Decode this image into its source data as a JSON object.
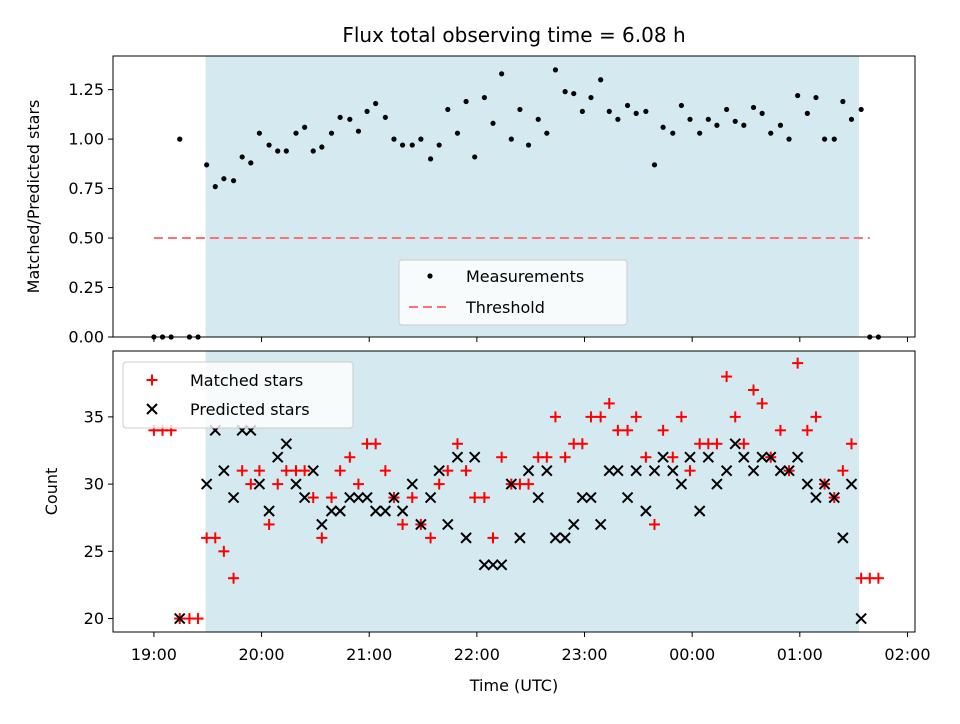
{
  "chart_data": [
    {
      "type": "scatter",
      "title": "Flux total observing time = 6.08 h",
      "xlabel": "",
      "ylabel": "Matched/Predicted stars",
      "ylim": [
        0,
        1.42
      ],
      "yticks": [
        "0.00",
        "0.25",
        "0.50",
        "0.75",
        "1.00",
        "1.25"
      ],
      "x_range_hours": [
        18.62,
        26.07
      ],
      "observing_window_hours": [
        19.48,
        25.55
      ],
      "threshold": {
        "value": 0.5,
        "x_start": 19.0,
        "x_end": 25.65,
        "color": "#ff7070"
      },
      "window_color": "#d4eaf0",
      "legend": {
        "position": "lower-center",
        "items": [
          "Measurements",
          "Threshold"
        ]
      },
      "series": [
        {
          "name": "Measurements",
          "marker": "dot",
          "color": "#000000",
          "points": [
            [
              19.0,
              0.0
            ],
            [
              19.08,
              0.0
            ],
            [
              19.16,
              0.0
            ],
            [
              19.24,
              1.0
            ],
            [
              19.33,
              0.0
            ],
            [
              19.41,
              0.0
            ],
            [
              19.49,
              0.87
            ],
            [
              19.57,
              0.76
            ],
            [
              19.65,
              0.8
            ],
            [
              19.74,
              0.79
            ],
            [
              19.82,
              0.91
            ],
            [
              19.9,
              0.88
            ],
            [
              19.98,
              1.03
            ],
            [
              20.07,
              0.97
            ],
            [
              20.15,
              0.94
            ],
            [
              20.23,
              0.94
            ],
            [
              20.32,
              1.03
            ],
            [
              20.4,
              1.06
            ],
            [
              20.48,
              0.94
            ],
            [
              20.56,
              0.96
            ],
            [
              20.65,
              1.03
            ],
            [
              20.73,
              1.11
            ],
            [
              20.82,
              1.1
            ],
            [
              20.9,
              1.04
            ],
            [
              20.98,
              1.14
            ],
            [
              21.06,
              1.18
            ],
            [
              21.15,
              1.11
            ],
            [
              21.23,
              1.0
            ],
            [
              21.31,
              0.97
            ],
            [
              21.4,
              0.97
            ],
            [
              21.48,
              1.0
            ],
            [
              21.57,
              0.9
            ],
            [
              21.65,
              0.97
            ],
            [
              21.73,
              1.15
            ],
            [
              21.82,
              1.03
            ],
            [
              21.9,
              1.19
            ],
            [
              21.98,
              0.91
            ],
            [
              22.07,
              1.21
            ],
            [
              22.15,
              1.08
            ],
            [
              22.23,
              1.33
            ],
            [
              22.32,
              1.0
            ],
            [
              22.4,
              1.15
            ],
            [
              22.48,
              0.97
            ],
            [
              22.57,
              1.1
            ],
            [
              22.65,
              1.03
            ],
            [
              22.73,
              1.35
            ],
            [
              22.82,
              1.24
            ],
            [
              22.9,
              1.23
            ],
            [
              22.98,
              1.14
            ],
            [
              23.06,
              1.21
            ],
            [
              23.15,
              1.3
            ],
            [
              23.23,
              1.14
            ],
            [
              23.31,
              1.1
            ],
            [
              23.4,
              1.17
            ],
            [
              23.48,
              1.13
            ],
            [
              23.57,
              1.14
            ],
            [
              23.65,
              0.87
            ],
            [
              23.73,
              1.06
            ],
            [
              23.82,
              1.03
            ],
            [
              23.9,
              1.17
            ],
            [
              23.98,
              1.1
            ],
            [
              24.07,
              1.03
            ],
            [
              24.15,
              1.1
            ],
            [
              24.23,
              1.07
            ],
            [
              24.32,
              1.15
            ],
            [
              24.4,
              1.09
            ],
            [
              24.48,
              1.07
            ],
            [
              24.57,
              1.16
            ],
            [
              24.65,
              1.13
            ],
            [
              24.73,
              1.03
            ],
            [
              24.82,
              1.07
            ],
            [
              24.9,
              1.0
            ],
            [
              24.98,
              1.22
            ],
            [
              25.07,
              1.13
            ],
            [
              25.15,
              1.21
            ],
            [
              25.23,
              1.0
            ],
            [
              25.32,
              1.0
            ],
            [
              25.4,
              1.19
            ],
            [
              25.48,
              1.1
            ],
            [
              25.57,
              1.15
            ],
            [
              25.65,
              0.0
            ],
            [
              25.73,
              0.0
            ]
          ]
        }
      ]
    },
    {
      "type": "scatter",
      "title": "",
      "xlabel": "Time (UTC)",
      "ylabel": "Count",
      "ylim": [
        19.0,
        39.9
      ],
      "yticks": [
        "20",
        "25",
        "30",
        "35"
      ],
      "x_range_hours": [
        18.62,
        26.07
      ],
      "xticks": [
        {
          "value": 19,
          "label": "19:00"
        },
        {
          "value": 20,
          "label": "20:00"
        },
        {
          "value": 21,
          "label": "21:00"
        },
        {
          "value": 22,
          "label": "22:00"
        },
        {
          "value": 23,
          "label": "23:00"
        },
        {
          "value": 24,
          "label": "00:00"
        },
        {
          "value": 25,
          "label": "01:00"
        },
        {
          "value": 26,
          "label": "02:00"
        }
      ],
      "observing_window_hours": [
        19.48,
        25.55
      ],
      "window_color": "#d4eaf0",
      "legend": {
        "position": "top-left",
        "items": [
          "Matched stars",
          "Predicted stars"
        ]
      },
      "series": [
        {
          "name": "Matched stars",
          "marker": "plus",
          "color": "#ff0000",
          "points": [
            [
              19.0,
              34
            ],
            [
              19.08,
              34
            ],
            [
              19.16,
              34
            ],
            [
              19.24,
              20
            ],
            [
              19.33,
              20
            ],
            [
              19.41,
              20
            ],
            [
              19.49,
              26
            ],
            [
              19.57,
              26
            ],
            [
              19.65,
              25
            ],
            [
              19.74,
              23
            ],
            [
              19.82,
              31
            ],
            [
              19.9,
              30
            ],
            [
              19.98,
              31
            ],
            [
              20.07,
              27
            ],
            [
              20.15,
              30
            ],
            [
              20.23,
              31
            ],
            [
              20.32,
              31
            ],
            [
              20.4,
              31
            ],
            [
              20.48,
              29
            ],
            [
              20.56,
              26
            ],
            [
              20.65,
              29
            ],
            [
              20.73,
              31
            ],
            [
              20.82,
              32
            ],
            [
              20.9,
              30
            ],
            [
              20.98,
              33
            ],
            [
              21.06,
              33
            ],
            [
              21.15,
              31
            ],
            [
              21.23,
              29
            ],
            [
              21.31,
              27
            ],
            [
              21.4,
              29
            ],
            [
              21.48,
              27
            ],
            [
              21.57,
              26
            ],
            [
              21.65,
              30
            ],
            [
              21.73,
              31
            ],
            [
              21.82,
              33
            ],
            [
              21.9,
              31
            ],
            [
              21.98,
              29
            ],
            [
              22.07,
              29
            ],
            [
              22.15,
              26
            ],
            [
              22.23,
              32
            ],
            [
              22.32,
              30
            ],
            [
              22.4,
              30
            ],
            [
              22.48,
              30
            ],
            [
              22.57,
              32
            ],
            [
              22.65,
              32
            ],
            [
              22.73,
              35
            ],
            [
              22.82,
              32
            ],
            [
              22.9,
              33
            ],
            [
              22.98,
              33
            ],
            [
              23.06,
              35
            ],
            [
              23.15,
              35
            ],
            [
              23.23,
              36
            ],
            [
              23.31,
              34
            ],
            [
              23.4,
              34
            ],
            [
              23.48,
              35
            ],
            [
              23.57,
              32
            ],
            [
              23.65,
              27
            ],
            [
              23.73,
              34
            ],
            [
              23.82,
              32
            ],
            [
              23.9,
              35
            ],
            [
              23.98,
              31
            ],
            [
              24.07,
              33
            ],
            [
              24.15,
              33
            ],
            [
              24.23,
              33
            ],
            [
              24.32,
              38
            ],
            [
              24.4,
              35
            ],
            [
              24.48,
              33
            ],
            [
              24.57,
              37
            ],
            [
              24.65,
              36
            ],
            [
              24.73,
              32
            ],
            [
              24.82,
              34
            ],
            [
              24.9,
              31
            ],
            [
              24.98,
              39
            ],
            [
              25.07,
              34
            ],
            [
              25.15,
              35
            ],
            [
              25.23,
              30
            ],
            [
              25.32,
              29
            ],
            [
              25.4,
              31
            ],
            [
              25.48,
              33
            ],
            [
              25.57,
              23
            ],
            [
              25.65,
              23
            ],
            [
              25.73,
              23
            ]
          ]
        },
        {
          "name": "Predicted stars",
          "marker": "cross",
          "color": "#000000",
          "points": [
            [
              19.24,
              20
            ],
            [
              19.49,
              30
            ],
            [
              19.57,
              34
            ],
            [
              19.65,
              31
            ],
            [
              19.74,
              29
            ],
            [
              19.82,
              34
            ],
            [
              19.9,
              34
            ],
            [
              19.98,
              30
            ],
            [
              20.07,
              28
            ],
            [
              20.15,
              32
            ],
            [
              20.23,
              33
            ],
            [
              20.32,
              30
            ],
            [
              20.4,
              29
            ],
            [
              20.48,
              31
            ],
            [
              20.56,
              27
            ],
            [
              20.65,
              28
            ],
            [
              20.73,
              28
            ],
            [
              20.82,
              29
            ],
            [
              20.9,
              29
            ],
            [
              20.98,
              29
            ],
            [
              21.06,
              28
            ],
            [
              21.15,
              28
            ],
            [
              21.23,
              29
            ],
            [
              21.31,
              28
            ],
            [
              21.4,
              30
            ],
            [
              21.48,
              27
            ],
            [
              21.57,
              29
            ],
            [
              21.65,
              31
            ],
            [
              21.73,
              27
            ],
            [
              21.82,
              32
            ],
            [
              21.9,
              26
            ],
            [
              21.98,
              32
            ],
            [
              22.07,
              24
            ],
            [
              22.15,
              24
            ],
            [
              22.23,
              24
            ],
            [
              22.32,
              30
            ],
            [
              22.4,
              26
            ],
            [
              22.48,
              31
            ],
            [
              22.57,
              29
            ],
            [
              22.65,
              31
            ],
            [
              22.73,
              26
            ],
            [
              22.82,
              26
            ],
            [
              22.9,
              27
            ],
            [
              22.98,
              29
            ],
            [
              23.06,
              29
            ],
            [
              23.15,
              27
            ],
            [
              23.23,
              31
            ],
            [
              23.31,
              31
            ],
            [
              23.4,
              29
            ],
            [
              23.48,
              31
            ],
            [
              23.57,
              28
            ],
            [
              23.65,
              31
            ],
            [
              23.73,
              32
            ],
            [
              23.82,
              31
            ],
            [
              23.9,
              30
            ],
            [
              23.98,
              32
            ],
            [
              24.07,
              28
            ],
            [
              24.15,
              32
            ],
            [
              24.23,
              30
            ],
            [
              24.32,
              31
            ],
            [
              24.4,
              33
            ],
            [
              24.48,
              32
            ],
            [
              24.57,
              31
            ],
            [
              24.65,
              32
            ],
            [
              24.73,
              32
            ],
            [
              24.82,
              31
            ],
            [
              24.9,
              31
            ],
            [
              24.98,
              32
            ],
            [
              25.07,
              30
            ],
            [
              25.15,
              29
            ],
            [
              25.23,
              30
            ],
            [
              25.32,
              29
            ],
            [
              25.4,
              26
            ],
            [
              25.48,
              30
            ],
            [
              25.57,
              20
            ]
          ]
        }
      ]
    }
  ]
}
